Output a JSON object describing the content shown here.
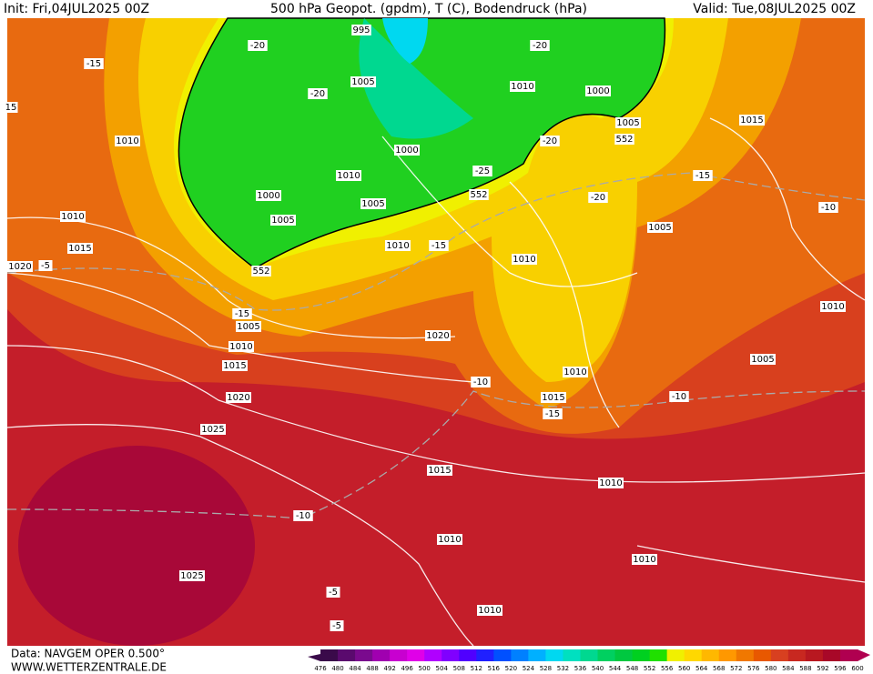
{
  "header": {
    "init": "Init: Fri,04JUL2025 00Z",
    "title": "500 hPa Geopot. (gpdm), T (C), Bodendruck (hPa)",
    "valid": "Valid: Tue,08JUL2025 00Z"
  },
  "map": {
    "labels": [
      "995",
      "-20",
      "-15",
      "1005",
      "-20",
      "1010",
      "1000",
      "-20",
      "1005",
      "552",
      "-20",
      "1010",
      "1000",
      "1010",
      "-25",
      "552",
      "-20",
      "-15",
      "1015",
      "-10",
      "15",
      "1010",
      "1000",
      "1005",
      "1005",
      "1010",
      "-15",
      "1005",
      "1015",
      "1020",
      "-5",
      "552",
      "1010",
      "-15",
      "1005",
      "1010",
      "1020",
      "1010",
      "1015",
      "1005",
      "-10",
      "1010",
      "1015",
      "-10",
      "-15",
      "1020",
      "1025",
      "1015",
      "1010",
      "-10",
      "1010",
      "1010",
      "1025",
      "-5",
      "1010",
      "-5"
    ]
  },
  "legend": {
    "labels": [
      476,
      480,
      484,
      488,
      492,
      496,
      500,
      504,
      508,
      512,
      516,
      520,
      524,
      528,
      532,
      536,
      540,
      544,
      548,
      552,
      556,
      560,
      564,
      568,
      572,
      576,
      580,
      584,
      588,
      592,
      596,
      600
    ],
    "colors": [
      "#3a0a4a",
      "#5a0a6e",
      "#7a0a8e",
      "#a000b0",
      "#c800d0",
      "#e000e8",
      "#b000ff",
      "#8000ff",
      "#5000ff",
      "#2020ff",
      "#0050ff",
      "#0080ff",
      "#00b0ff",
      "#00d8f0",
      "#00e0c0",
      "#00d890",
      "#00d060",
      "#00c840",
      "#00d020",
      "#20e000",
      "#f0f000",
      "#ffd800",
      "#ffb800",
      "#ff9800",
      "#f07800",
      "#e85800",
      "#d84020",
      "#c82820",
      "#b81820",
      "#a80828",
      "#b00050"
    ]
  },
  "footer": {
    "source": "Data: NAVGEM OPER 0.500°",
    "site": "WWW.WETTERZENTRALE.DE"
  }
}
